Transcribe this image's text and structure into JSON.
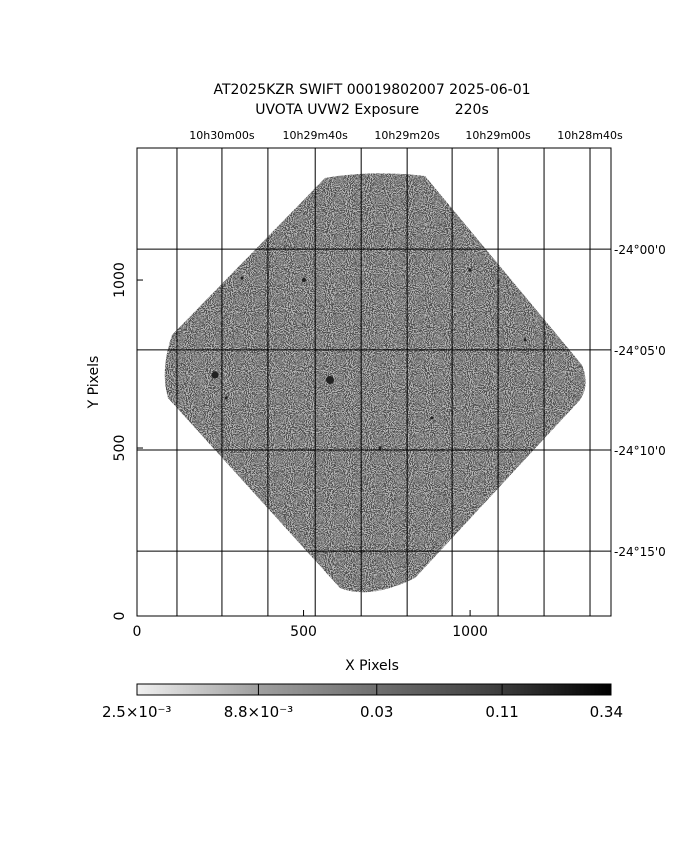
{
  "chart_data": {
    "type": "image",
    "title": "AT2025KZR SWIFT 00019802007 2025-06-01",
    "subtitle": "UVOTA UVW2 Exposure        220s",
    "x_label": "X Pixels",
    "y_label": "Y Pixels",
    "xlim": [
      0,
      1423
    ],
    "ylim": [
      0,
      1393
    ],
    "xticks": [
      0,
      500,
      1000
    ],
    "yticks": [
      0,
      500,
      1000
    ],
    "ra_grid_x": [
      120,
      255,
      393,
      535,
      673,
      811,
      946,
      1084,
      1222,
      1360
    ],
    "ra_labels": [
      null,
      "10h30m00s",
      null,
      "10h29m40s",
      null,
      "10h29m20s",
      null,
      "10h29m00s",
      null,
      "10h28m40s"
    ],
    "dec_grid_y": [
      1092,
      792,
      494,
      193
    ],
    "dec_labels": [
      "-24°00'0",
      "-24°05'0",
      "-24°10'0",
      "-24°15'0"
    ],
    "colorbar": {
      "scale": "log",
      "lim": [
        0.0025,
        0.34
      ],
      "ticks": [
        {
          "value": 0.0025,
          "label": "2.5×10⁻³"
        },
        {
          "value": 0.0088,
          "label": "8.8×10⁻³"
        },
        0.03,
        0.11,
        0.34
      ]
    }
  }
}
